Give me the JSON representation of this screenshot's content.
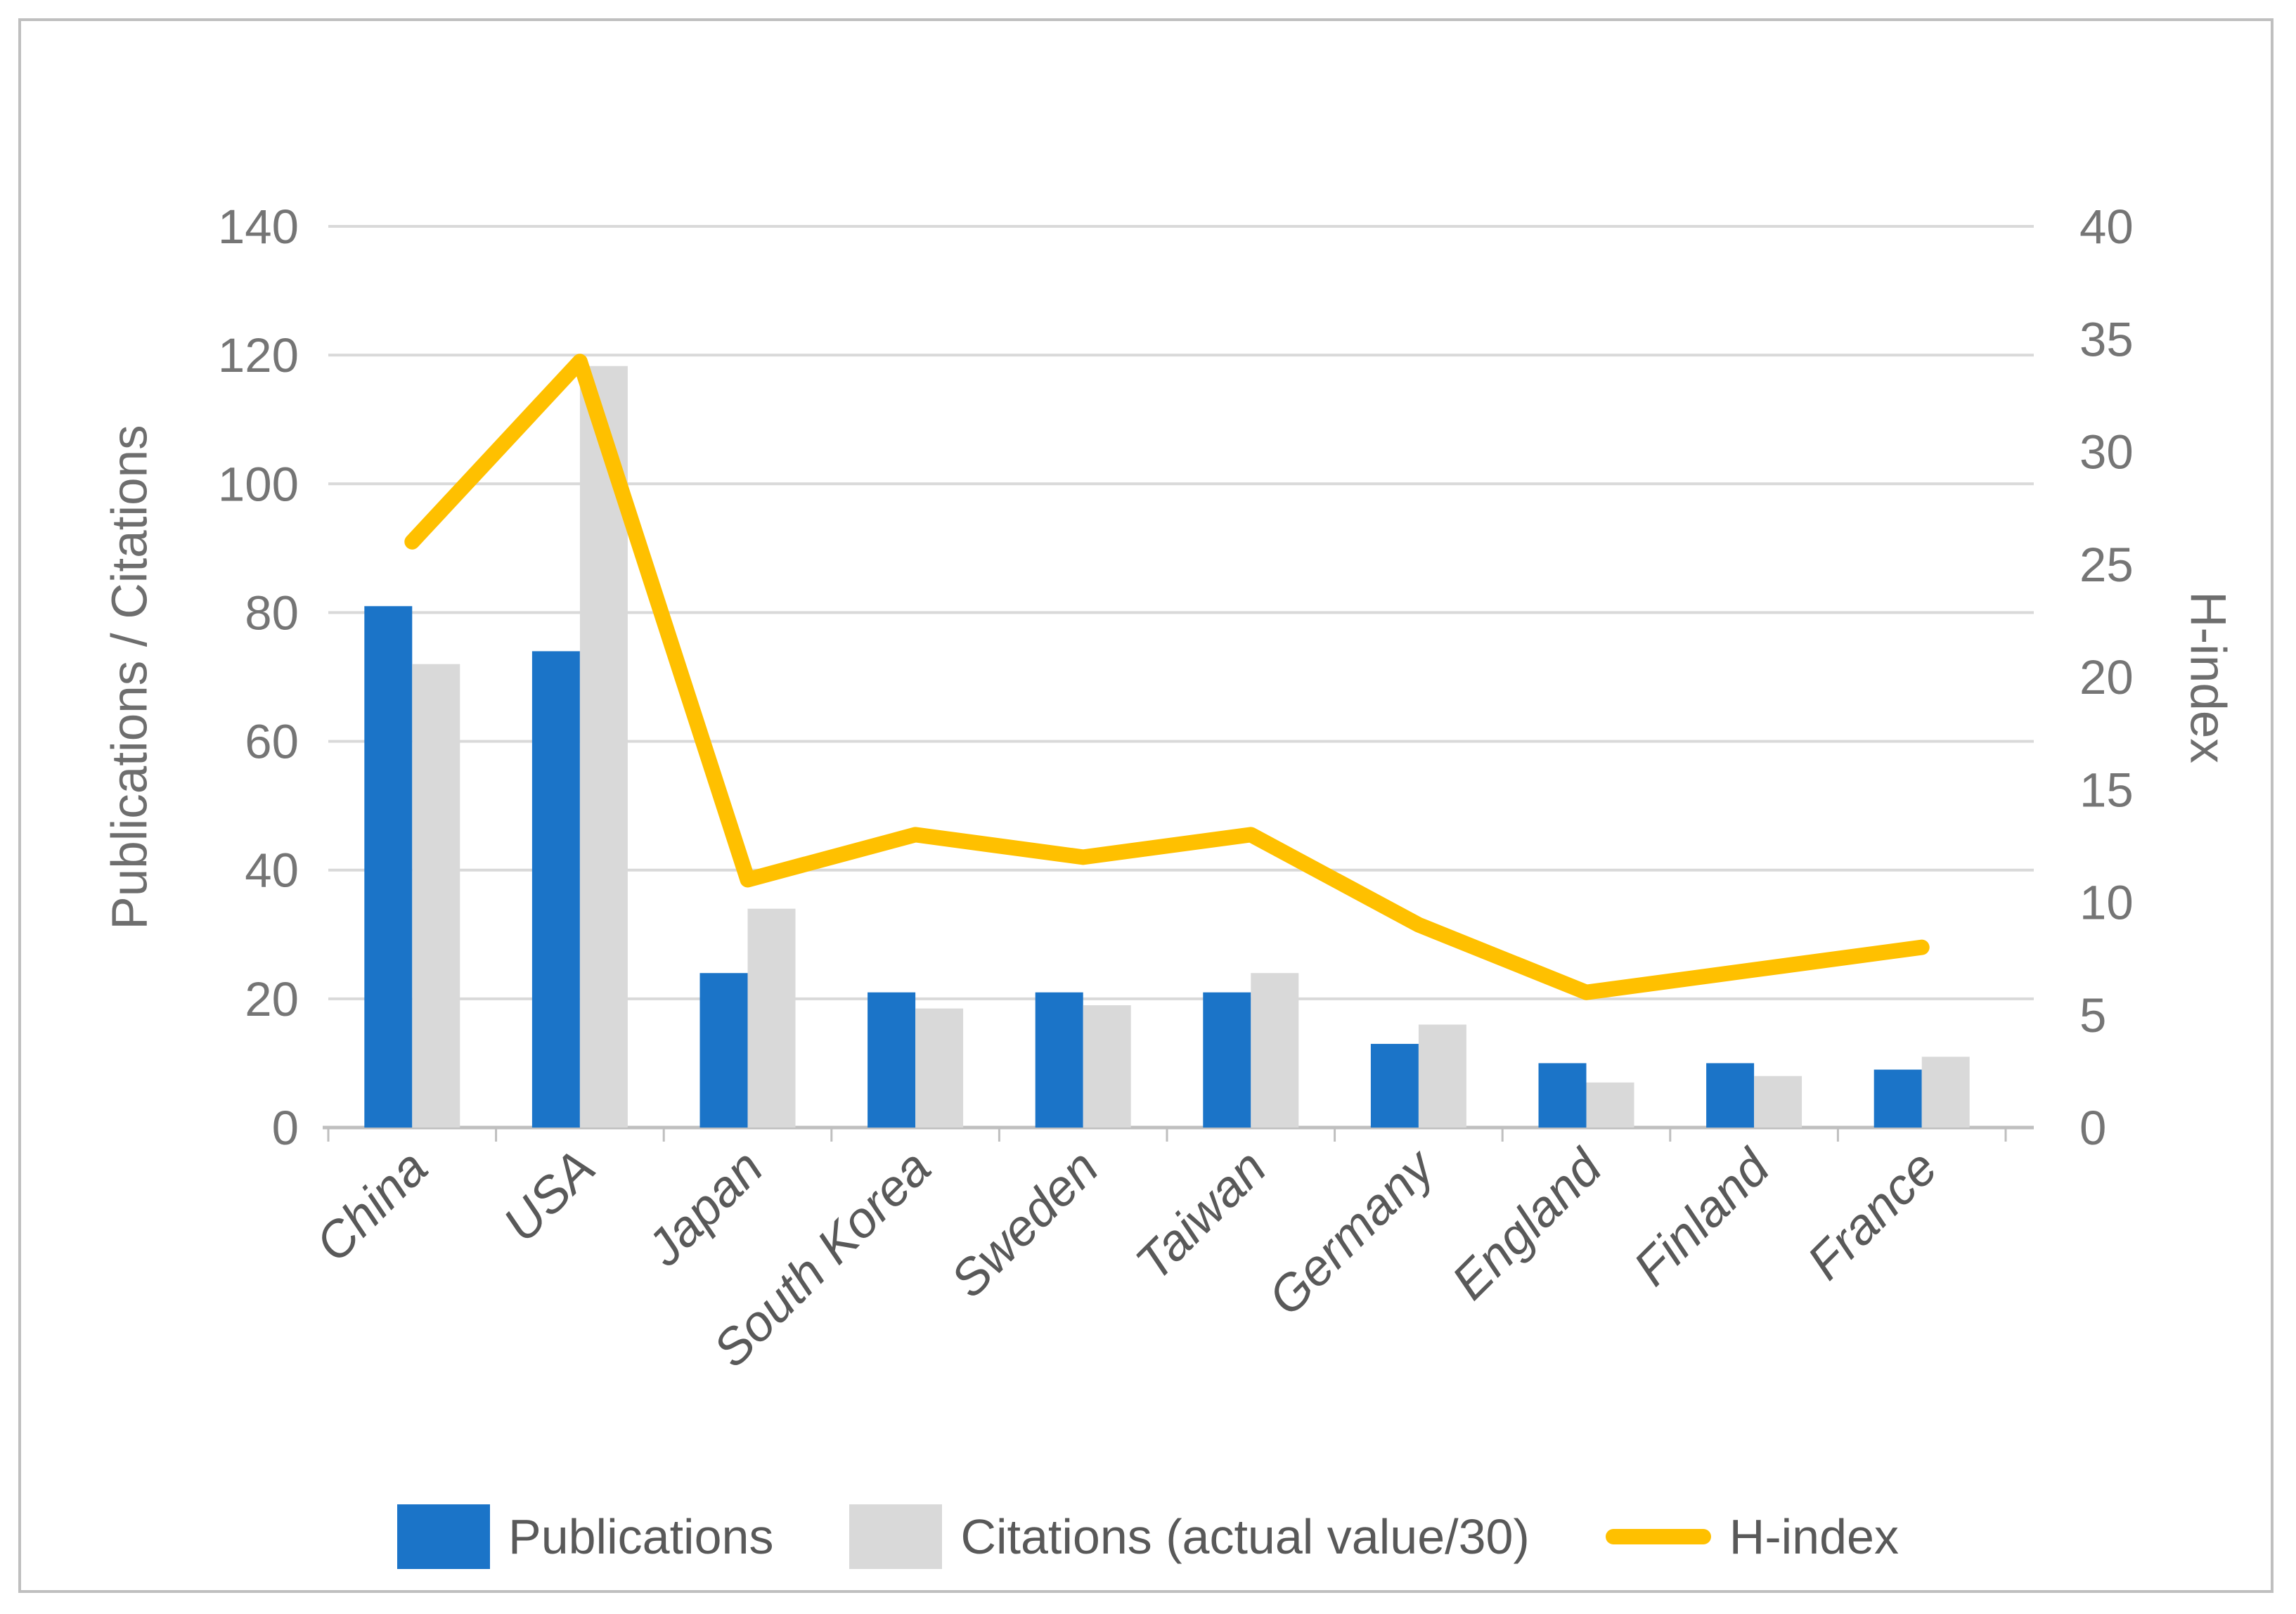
{
  "figure": {
    "background_color": "#FFFFFF",
    "border_color": "#BFBFBF",
    "gridline_color": "#D9D9D9",
    "axis_line_color": "#BFBFBF",
    "tick_text_color": "#757575",
    "label_text_color": "#595959"
  },
  "chart_data": {
    "type": "bar",
    "subtype": "grouped-bar-with-line-overlay",
    "title": "",
    "categories": [
      "China",
      "USA",
      "Japan",
      "South Korea",
      "Sweden",
      "Taiwan",
      "Germany",
      "England",
      "Finland",
      "France"
    ],
    "series": [
      {
        "name": "Publications",
        "type": "bar",
        "axis": "left",
        "color": "#1B74C8",
        "values": [
          81,
          74,
          24,
          21,
          21,
          21,
          13,
          10,
          10,
          9
        ]
      },
      {
        "name": "Citations (actual value/30)",
        "type": "bar",
        "axis": "left",
        "color": "#D9D9D9",
        "values": [
          72,
          118.3,
          34,
          18.5,
          19,
          24,
          16,
          7,
          8,
          11
        ]
      },
      {
        "name": "H-index",
        "type": "line",
        "axis": "right",
        "color": "#FFC000",
        "values": [
          26,
          34,
          11,
          13,
          12,
          13,
          9,
          6,
          7,
          8
        ]
      }
    ],
    "left_axis": {
      "title": "Publications / Citations",
      "min": 0,
      "max": 140,
      "step": 20,
      "tick_labels": [
        "0",
        "20",
        "40",
        "60",
        "80",
        "100",
        "120",
        "140"
      ]
    },
    "right_axis": {
      "title": "H-index",
      "min": 0,
      "max": 40,
      "step": 5,
      "tick_labels": [
        "0",
        "5",
        "10",
        "15",
        "20",
        "25",
        "30",
        "35",
        "40"
      ]
    },
    "grid": true,
    "legend_position": "bottom",
    "category_label_rotation_deg": -45
  },
  "legend": {
    "items": [
      {
        "label": "Publications",
        "marker": "rect",
        "color": "#1B74C8"
      },
      {
        "label": "Citations (actual value/30)",
        "marker": "rect",
        "color": "#D9D9D9"
      },
      {
        "label": "H-index",
        "marker": "line",
        "color": "#FFC000"
      }
    ]
  }
}
